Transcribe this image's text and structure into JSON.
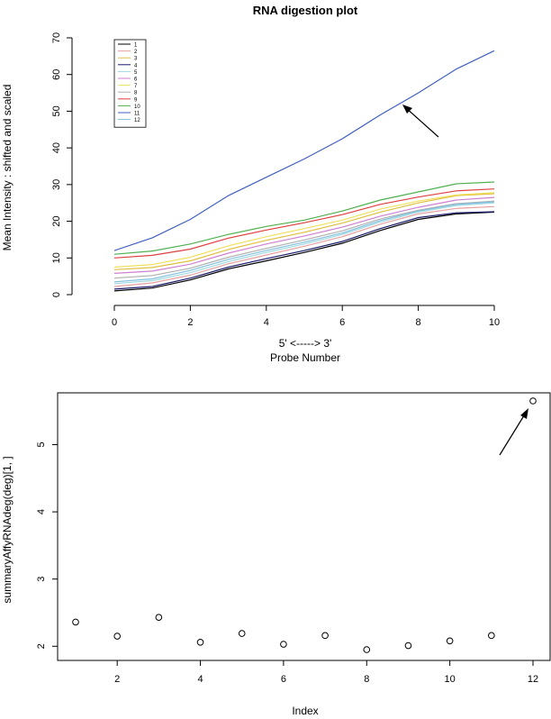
{
  "chart_data": [
    {
      "type": "line",
      "title": "RNA digestion plot",
      "xlabel_line1": "5' <-----> 3'",
      "xlabel_line2": "Probe Number",
      "ylabel": "Mean Intensity : shifted and scaled",
      "xlim": [
        0,
        10
      ],
      "ylim": [
        0,
        70
      ],
      "x_ticks": [
        "0",
        "2",
        "4",
        "6",
        "8",
        "10"
      ],
      "y_ticks": [
        "0",
        "10",
        "20",
        "30",
        "40",
        "50",
        "60",
        "70"
      ],
      "x": [
        0,
        1,
        2,
        3,
        4,
        5,
        6,
        7,
        8,
        9,
        10
      ],
      "legend_position": "top-left",
      "series": [
        {
          "name": "1",
          "color": "#000000",
          "values": [
            1.0,
            1.8,
            4.0,
            7.0,
            9.2,
            11.5,
            14.0,
            17.5,
            20.5,
            22.0,
            22.5
          ]
        },
        {
          "name": "2",
          "color": "#e8a0a0",
          "values": [
            2.2,
            3.2,
            5.3,
            8.4,
            10.8,
            13.2,
            15.8,
            19.2,
            22.0,
            23.5,
            24.0
          ]
        },
        {
          "name": "3",
          "color": "#e0c040",
          "values": [
            6.8,
            7.4,
            9.2,
            12.3,
            14.8,
            17.0,
            19.5,
            22.5,
            25.0,
            27.0,
            27.5
          ]
        },
        {
          "name": "4",
          "color": "#1a1a6e",
          "values": [
            1.5,
            2.2,
            4.5,
            7.5,
            9.8,
            12.0,
            14.5,
            18.0,
            21.0,
            22.3,
            22.6
          ]
        },
        {
          "name": "5",
          "color": "#a0d8e0",
          "values": [
            3.0,
            3.8,
            6.0,
            9.0,
            11.5,
            13.8,
            16.4,
            19.8,
            22.5,
            24.3,
            25.0
          ]
        },
        {
          "name": "6",
          "color": "#d080d0",
          "values": [
            5.8,
            6.4,
            8.3,
            11.3,
            13.8,
            16.0,
            18.4,
            21.4,
            23.8,
            25.8,
            26.5
          ]
        },
        {
          "name": "7",
          "color": "#f0e060",
          "values": [
            7.5,
            8.2,
            10.2,
            13.3,
            15.8,
            18.0,
            20.3,
            23.3,
            25.5,
            27.2,
            27.8
          ]
        },
        {
          "name": "8",
          "color": "#b0b0b0",
          "values": [
            4.5,
            5.2,
            7.2,
            10.2,
            12.6,
            14.9,
            17.4,
            20.6,
            23.0,
            24.8,
            25.5
          ]
        },
        {
          "name": "9",
          "color": "#e04040",
          "values": [
            10.0,
            10.7,
            12.4,
            15.4,
            17.6,
            19.6,
            21.8,
            24.6,
            26.6,
            28.3,
            28.8
          ]
        },
        {
          "name": "10",
          "color": "#50b050",
          "values": [
            11.0,
            11.9,
            13.8,
            16.4,
            18.6,
            20.3,
            22.8,
            25.8,
            28.0,
            30.2,
            30.7
          ]
        },
        {
          "name": "11",
          "color": "#4060c0",
          "values": [
            12.0,
            15.5,
            20.5,
            27.0,
            32.0,
            37.0,
            42.5,
            49.0,
            55.0,
            61.5,
            66.5
          ]
        },
        {
          "name": "12",
          "color": "#80c0e0",
          "values": [
            3.5,
            4.3,
            6.6,
            9.6,
            12.0,
            14.3,
            16.8,
            20.2,
            22.8,
            24.6,
            25.3
          ]
        }
      ],
      "annotation": "arrow pointing to series 11"
    },
    {
      "type": "scatter",
      "title": "",
      "xlabel": "Index",
      "ylabel": "summaryAffyRNAdeg(deg)[1, ]",
      "xlim": [
        1,
        12
      ],
      "ylim": [
        1.95,
        5.65
      ],
      "x_ticks": [
        "2",
        "4",
        "6",
        "8",
        "10",
        "12"
      ],
      "y_ticks": [
        "2",
        "3",
        "4",
        "5"
      ],
      "points": [
        {
          "x": 1,
          "y": 2.36
        },
        {
          "x": 2,
          "y": 2.15
        },
        {
          "x": 3,
          "y": 2.43
        },
        {
          "x": 4,
          "y": 2.06
        },
        {
          "x": 5,
          "y": 2.19
        },
        {
          "x": 6,
          "y": 2.03
        },
        {
          "x": 7,
          "y": 2.16
        },
        {
          "x": 8,
          "y": 1.95
        },
        {
          "x": 9,
          "y": 2.01
        },
        {
          "x": 10,
          "y": 2.08
        },
        {
          "x": 11,
          "y": 2.16
        },
        {
          "x": 12,
          "y": 5.65
        }
      ],
      "annotation": "arrow pointing to point at index 12"
    }
  ]
}
